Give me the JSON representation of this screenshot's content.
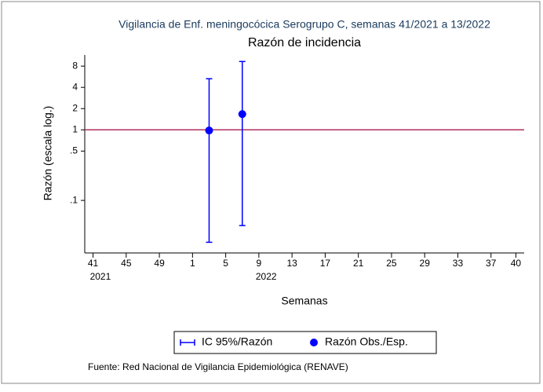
{
  "chart_data": {
    "type": "scatter",
    "title": "Vigilancia de Enf. meningocócica Serogrupo C, semanas 41/2021 a 13/2022",
    "subtitle": "Razón de incidencia",
    "x_label": "Semanas",
    "y_label": "Razón (escala log.)",
    "footer": "Fuente: Red Nacional de Vigilancia Epidemiológica (RENAVE)",
    "log_y": true,
    "x": [
      55,
      59
    ],
    "series": [
      {
        "name": "IC 95%/Razón",
        "kind": "ci",
        "color": "#0000ff",
        "low": [
          0.0255,
          0.044
        ],
        "high": [
          5.3,
          9.3
        ]
      },
      {
        "name": "Razón Obs./Esp.",
        "kind": "point",
        "color": "#0000ff",
        "values": [
          0.98,
          1.67
        ]
      }
    ],
    "reference_line": {
      "value": 1,
      "color": "#b03060"
    },
    "xlim": [
      40,
      93
    ],
    "xticks": [
      41,
      45,
      49,
      {
        "value": 53,
        "label": "1"
      },
      {
        "value": 57,
        "label": "5"
      },
      {
        "value": 61,
        "label": "9"
      },
      {
        "value": 65,
        "label": "13"
      },
      {
        "value": 69,
        "label": "17"
      },
      {
        "value": 73,
        "label": "21"
      },
      {
        "value": 77,
        "label": "25"
      },
      {
        "value": 81,
        "label": "29"
      },
      {
        "value": 85,
        "label": "33"
      },
      {
        "value": 89,
        "label": "37"
      },
      {
        "value": 92,
        "label": "40"
      }
    ],
    "year_labels": [
      {
        "x": 41,
        "label": "2021"
      },
      {
        "x": 61,
        "label": "2022"
      }
    ],
    "ylim": [
      0.018,
      11.5
    ],
    "yticks": [
      8,
      4,
      2,
      1,
      {
        "value": 0.5,
        "label": ".5"
      },
      {
        "value": 0.1,
        "label": ".1"
      }
    ]
  }
}
